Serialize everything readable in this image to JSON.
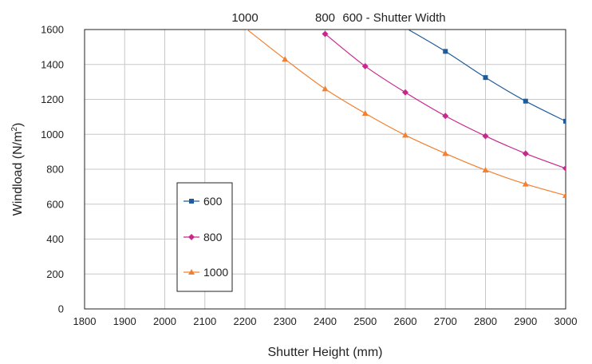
{
  "chart_data": {
    "type": "line",
    "xlabel": "Shutter Height (mm)",
    "ylabel": "Windload (N/m²)",
    "xlim": [
      1800,
      3000
    ],
    "ylim": [
      0,
      1600
    ],
    "x_ticks": [
      "1800",
      "1900",
      "2000",
      "2100",
      "2200",
      "2300",
      "2400",
      "2500",
      "2600",
      "2700",
      "2800",
      "2900",
      "3000"
    ],
    "y_ticks": [
      "0",
      "200",
      "400",
      "600",
      "800",
      "1000",
      "1200",
      "1400",
      "1600"
    ],
    "grid": true,
    "legend_position": "lower-left",
    "top_labels": [
      {
        "text": "1000",
        "x": 2200
      },
      {
        "text": "800",
        "x": 2400
      },
      {
        "text": "600 - Shutter Width",
        "x": 2600
      }
    ],
    "series": [
      {
        "name": "600",
        "color": "#1F5C99",
        "marker": "square",
        "x": [
          2600,
          2700,
          2800,
          2900,
          3000
        ],
        "y": [
          1610,
          1475,
          1325,
          1190,
          1075
        ]
      },
      {
        "name": "800",
        "color": "#C8288E",
        "marker": "diamond",
        "x": [
          2400,
          2500,
          2600,
          2700,
          2800,
          2900,
          3000
        ],
        "y": [
          1575,
          1390,
          1240,
          1105,
          990,
          890,
          805
        ]
      },
      {
        "name": "1000",
        "color": "#F28030",
        "marker": "triangle",
        "x": [
          2200,
          2300,
          2400,
          2500,
          2600,
          2700,
          2800,
          2900,
          3000
        ],
        "y": [
          1610,
          1430,
          1260,
          1120,
          995,
          890,
          795,
          715,
          650
        ]
      }
    ]
  }
}
